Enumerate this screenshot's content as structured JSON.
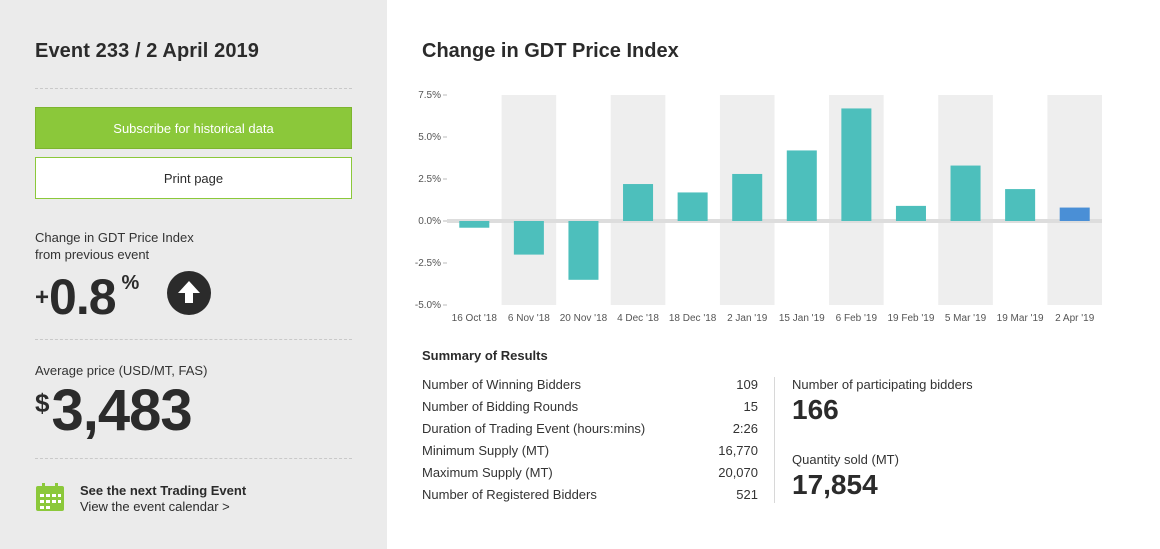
{
  "sidebar": {
    "event_title": "Event 233 / 2 April 2019",
    "subscribe_label": "Subscribe for historical data",
    "print_label": "Print page",
    "change_label_line1": "Change in GDT Price Index",
    "change_label_line2": "from previous event",
    "change_sign": "+",
    "change_value": "0.8",
    "change_unit": "%",
    "price_label": "Average price (USD/MT, FAS)",
    "price_currency": "$",
    "price_value": "3,483",
    "next_event_title": "See the next Trading Event",
    "next_event_link": "View the event calendar >"
  },
  "main": {
    "chart_title": "Change in GDT Price Index",
    "summary_title": "Summary of Results",
    "summary_rows": [
      {
        "label": "Number of Winning Bidders",
        "value": "109"
      },
      {
        "label": "Number of Bidding Rounds",
        "value": "15"
      },
      {
        "label": "Duration of Trading Event (hours:mins)",
        "value": "2:26"
      },
      {
        "label": "Minimum Supply (MT)",
        "value": "16,770"
      },
      {
        "label": "Maximum Supply (MT)",
        "value": "20,070"
      },
      {
        "label": "Number of Registered Bidders",
        "value": "521"
      }
    ],
    "participating_label": "Number of participating bidders",
    "participating_value": "166",
    "quantity_label": "Quantity sold (MT)",
    "quantity_value": "17,854"
  },
  "colors": {
    "accent_green": "#8bc83a",
    "bar_teal": "#4dbfbc",
    "bar_latest": "#4a8fd6",
    "band_grey": "#eeeeee"
  },
  "chart_data": {
    "type": "bar",
    "categories": [
      "16 Oct '18",
      "6 Nov '18",
      "20 Nov '18",
      "4 Dec '18",
      "18 Dec '18",
      "2 Jan '19",
      "15 Jan '19",
      "6 Feb '19",
      "19 Feb '19",
      "5 Mar '19",
      "19 Mar '19",
      "2 Apr '19"
    ],
    "values": [
      -0.4,
      -2.0,
      -3.5,
      2.2,
      1.7,
      2.8,
      4.2,
      6.7,
      0.9,
      3.3,
      1.9,
      0.8
    ],
    "ylim": [
      -5.0,
      7.5
    ],
    "yticks": [
      7.5,
      5.0,
      2.5,
      0.0,
      -2.5,
      -5.0
    ],
    "ytick_labels": [
      "7.5%",
      "5.0%",
      "2.5%",
      "0.0%",
      "-2.5%",
      "-5.0%"
    ],
    "highlight_last": true,
    "grid": "alternating-bands"
  }
}
